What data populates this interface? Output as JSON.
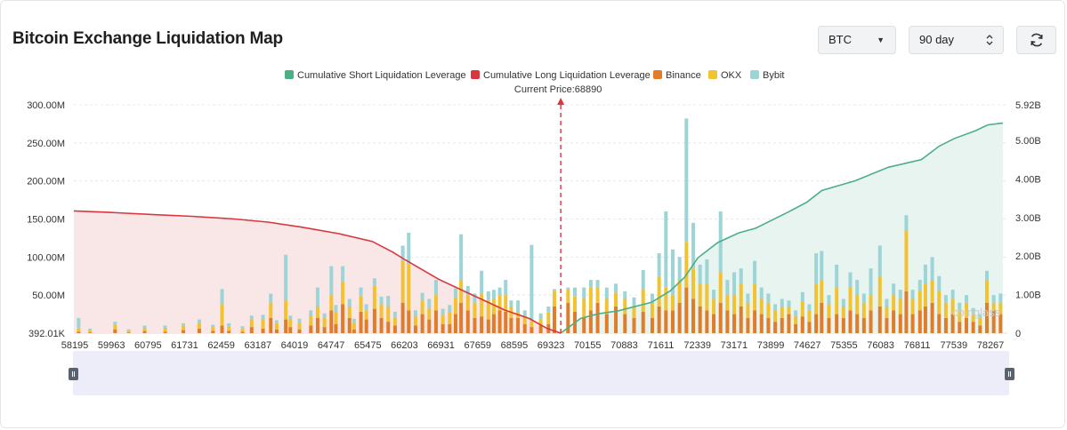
{
  "header": {
    "title": "Bitcoin Exchange Liquidation Map",
    "coin_select": "BTC",
    "period_select": "90 day",
    "refresh_icon": "refresh-icon"
  },
  "colors": {
    "short": "#4caf86",
    "long": "#d9363e",
    "binance": "#e07c2a",
    "okx": "#f2c230",
    "bybit": "#9dd4d6"
  },
  "chart_data": {
    "type": "bar",
    "title": "Bitcoin Exchange Liquidation Map",
    "legend": [
      "Cumulative Short Liquidation Leverage",
      "Cumulative Long Liquidation Leverage",
      "Binance",
      "OKX",
      "Bybit"
    ],
    "current_price_label": "Current Price:68890",
    "current_price": 68890,
    "x_range": [
      58195,
      78700
    ],
    "x_ticks": [
      "58195",
      "59963",
      "60795",
      "61731",
      "62459",
      "63187",
      "64019",
      "64747",
      "65475",
      "66203",
      "66931",
      "67659",
      "68595",
      "69323",
      "70155",
      "70883",
      "71611",
      "72339",
      "73171",
      "73899",
      "74627",
      "75355",
      "76083",
      "76811",
      "77539",
      "78267"
    ],
    "y_left_ticks": [
      "392.01K",
      "50.00M",
      "100.00M",
      "150.00M",
      "200.00M",
      "250.00M",
      "300.00M"
    ],
    "y_left_range": [
      0,
      300
    ],
    "y_left_unit": "M",
    "y_right_ticks": [
      "0",
      "1.00B",
      "2.00B",
      "3.00B",
      "4.00B",
      "5.00B",
      "5.92B"
    ],
    "y_right_range": [
      0,
      5.92
    ],
    "y_right_unit": "B",
    "cumulative_long": {
      "name": "Cumulative Long Liquidation Leverage",
      "x": [
        58195,
        59000,
        60000,
        60795,
        61731,
        62459,
        63187,
        64019,
        64747,
        65200,
        65475,
        66203,
        66931,
        67659,
        68200,
        68595,
        68890
      ],
      "y": [
        3.17,
        3.13,
        3.07,
        3.03,
        2.96,
        2.88,
        2.75,
        2.58,
        2.38,
        2.1,
        1.9,
        1.4,
        1.0,
        0.6,
        0.38,
        0.12,
        0.0
      ]
    },
    "cumulative_short": {
      "name": "Cumulative Short Liquidation Leverage",
      "x": [
        68890,
        69323,
        69700,
        70155,
        70883,
        71300,
        71611,
        71900,
        72339,
        72800,
        73171,
        73899,
        74300,
        74627,
        75355,
        76083,
        76811,
        77200,
        77539,
        78000,
        78267,
        78600
      ],
      "y": [
        0.0,
        0.38,
        0.5,
        0.58,
        0.8,
        1.1,
        1.45,
        1.95,
        2.35,
        2.6,
        2.72,
        3.15,
        3.4,
        3.7,
        3.95,
        4.3,
        4.5,
        4.85,
        5.05,
        5.25,
        5.4,
        5.45
      ]
    },
    "bar_series": [
      "Binance",
      "OKX",
      "Bybit"
    ],
    "bars": [
      {
        "x": 58300,
        "b": 2,
        "o": 4,
        "y": 14
      },
      {
        "x": 58550,
        "b": 1,
        "o": 3,
        "y": 2
      },
      {
        "x": 59100,
        "b": 5,
        "o": 6,
        "y": 4
      },
      {
        "x": 59400,
        "b": 1,
        "o": 2,
        "y": 2
      },
      {
        "x": 59750,
        "b": 3,
        "o": 4,
        "y": 3
      },
      {
        "x": 60200,
        "b": 2,
        "o": 5,
        "y": 3
      },
      {
        "x": 60600,
        "b": 4,
        "o": 6,
        "y": 3
      },
      {
        "x": 60950,
        "b": 6,
        "o": 8,
        "y": 4
      },
      {
        "x": 61250,
        "b": 3,
        "o": 5,
        "y": 3
      },
      {
        "x": 61450,
        "b": 10,
        "o": 28,
        "y": 20
      },
      {
        "x": 61600,
        "b": 3,
        "o": 6,
        "y": 4
      },
      {
        "x": 61900,
        "b": 2,
        "o": 4,
        "y": 3
      },
      {
        "x": 62100,
        "b": 8,
        "o": 10,
        "y": 5
      },
      {
        "x": 62350,
        "b": 6,
        "o": 12,
        "y": 6
      },
      {
        "x": 62520,
        "b": 20,
        "o": 20,
        "y": 12
      },
      {
        "x": 62650,
        "b": 5,
        "o": 8,
        "y": 4
      },
      {
        "x": 62850,
        "b": 18,
        "o": 25,
        "y": 60
      },
      {
        "x": 62950,
        "b": 8,
        "o": 10,
        "y": 5
      },
      {
        "x": 63150,
        "b": 5,
        "o": 8,
        "y": 6
      },
      {
        "x": 63400,
        "b": 10,
        "o": 12,
        "y": 8
      },
      {
        "x": 63550,
        "b": 20,
        "o": 15,
        "y": 25
      },
      {
        "x": 63700,
        "b": 8,
        "o": 12,
        "y": 6
      },
      {
        "x": 63850,
        "b": 30,
        "o": 20,
        "y": 38
      },
      {
        "x": 63950,
        "b": 12,
        "o": 15,
        "y": 10
      },
      {
        "x": 64100,
        "b": 38,
        "o": 30,
        "y": 20
      },
      {
        "x": 64250,
        "b": 20,
        "o": 15,
        "y": 10
      },
      {
        "x": 64350,
        "b": 5,
        "o": 8,
        "y": 6
      },
      {
        "x": 64500,
        "b": 28,
        "o": 20,
        "y": 12
      },
      {
        "x": 64620,
        "b": 18,
        "o": 12,
        "y": 8
      },
      {
        "x": 64800,
        "b": 32,
        "o": 30,
        "y": 10
      },
      {
        "x": 64950,
        "b": 20,
        "o": 18,
        "y": 10
      },
      {
        "x": 65100,
        "b": 15,
        "o": 20,
        "y": 14
      },
      {
        "x": 65250,
        "b": 10,
        "o": 10,
        "y": 8
      },
      {
        "x": 65420,
        "b": 40,
        "o": 55,
        "y": 20
      },
      {
        "x": 65550,
        "b": 30,
        "o": 60,
        "y": 42
      },
      {
        "x": 65700,
        "b": 10,
        "o": 12,
        "y": 8
      },
      {
        "x": 65850,
        "b": 25,
        "o": 18,
        "y": 10
      },
      {
        "x": 66000,
        "b": 18,
        "o": 15,
        "y": 12
      },
      {
        "x": 66150,
        "b": 30,
        "o": 20,
        "y": 20
      },
      {
        "x": 66300,
        "b": 12,
        "o": 12,
        "y": 8
      },
      {
        "x": 66450,
        "b": 12,
        "o": 15,
        "y": 10
      },
      {
        "x": 66580,
        "b": 25,
        "o": 22,
        "y": 12
      },
      {
        "x": 66700,
        "b": 40,
        "o": 30,
        "y": 60
      },
      {
        "x": 66850,
        "b": 30,
        "o": 20,
        "y": 12
      },
      {
        "x": 67000,
        "b": 20,
        "o": 20,
        "y": 12
      },
      {
        "x": 67150,
        "b": 22,
        "o": 30,
        "y": 30
      },
      {
        "x": 67300,
        "b": 18,
        "o": 25,
        "y": 12
      },
      {
        "x": 67420,
        "b": 25,
        "o": 20,
        "y": 12
      },
      {
        "x": 67550,
        "b": 30,
        "o": 20,
        "y": 10
      },
      {
        "x": 67680,
        "b": 28,
        "o": 22,
        "y": 20
      },
      {
        "x": 67800,
        "b": 20,
        "o": 15,
        "y": 8
      },
      {
        "x": 67950,
        "b": 20,
        "o": 8,
        "y": 15
      },
      {
        "x": 68100,
        "b": 12,
        "o": 10,
        "y": 8
      },
      {
        "x": 68250,
        "b": 8,
        "o": 8,
        "y": 100
      },
      {
        "x": 68450,
        "b": 10,
        "o": 8,
        "y": 8
      },
      {
        "x": 68620,
        "b": 12,
        "o": 15,
        "y": 8
      },
      {
        "x": 68750,
        "b": 35,
        "o": 20,
        "y": 3
      },
      {
        "x": 69050,
        "b": 40,
        "o": 18,
        "y": 2
      },
      {
        "x": 69200,
        "b": 28,
        "o": 20,
        "y": 12
      },
      {
        "x": 69400,
        "b": 20,
        "o": 25,
        "y": 15
      },
      {
        "x": 69550,
        "b": 30,
        "o": 30,
        "y": 10
      },
      {
        "x": 69700,
        "b": 40,
        "o": 20,
        "y": 10
      },
      {
        "x": 69900,
        "b": 25,
        "o": 20,
        "y": 15
      },
      {
        "x": 70100,
        "b": 35,
        "o": 18,
        "y": 12
      },
      {
        "x": 70300,
        "b": 25,
        "o": 20,
        "y": 10
      },
      {
        "x": 70500,
        "b": 20,
        "o": 15,
        "y": 12
      },
      {
        "x": 70700,
        "b": 28,
        "o": 30,
        "y": 25
      },
      {
        "x": 70900,
        "b": 20,
        "o": 20,
        "y": 12
      },
      {
        "x": 71050,
        "b": 35,
        "o": 40,
        "y": 30
      },
      {
        "x": 71200,
        "b": 30,
        "o": 30,
        "y": 100
      },
      {
        "x": 71350,
        "b": 30,
        "o": 20,
        "y": 60
      },
      {
        "x": 71500,
        "b": 40,
        "o": 30,
        "y": 30
      },
      {
        "x": 71650,
        "b": 60,
        "o": 60,
        "y": 162
      },
      {
        "x": 71800,
        "b": 45,
        "o": 40,
        "y": 60
      },
      {
        "x": 71950,
        "b": 35,
        "o": 30,
        "y": 25
      },
      {
        "x": 72100,
        "b": 30,
        "o": 35,
        "y": 32
      },
      {
        "x": 72250,
        "b": 25,
        "o": 20,
        "y": 12
      },
      {
        "x": 72400,
        "b": 40,
        "o": 40,
        "y": 80
      },
      {
        "x": 72550,
        "b": 30,
        "o": 20,
        "y": 20
      },
      {
        "x": 72700,
        "b": 25,
        "o": 25,
        "y": 30
      },
      {
        "x": 72850,
        "b": 35,
        "o": 30,
        "y": 20
      },
      {
        "x": 73000,
        "b": 20,
        "o": 20,
        "y": 12
      },
      {
        "x": 73150,
        "b": 30,
        "o": 35,
        "y": 30
      },
      {
        "x": 73300,
        "b": 25,
        "o": 20,
        "y": 15
      },
      {
        "x": 73450,
        "b": 20,
        "o": 20,
        "y": 12
      },
      {
        "x": 73600,
        "b": 15,
        "o": 15,
        "y": 8
      },
      {
        "x": 73750,
        "b": 20,
        "o": 15,
        "y": 10
      },
      {
        "x": 73900,
        "b": 25,
        "o": 10,
        "y": 8
      },
      {
        "x": 74050,
        "b": 12,
        "o": 10,
        "y": 8
      },
      {
        "x": 74200,
        "b": 22,
        "o": 20,
        "y": 12
      },
      {
        "x": 74350,
        "b": 15,
        "o": 15,
        "y": 8
      },
      {
        "x": 74500,
        "b": 25,
        "o": 40,
        "y": 40
      },
      {
        "x": 74620,
        "b": 40,
        "o": 30,
        "y": 38
      },
      {
        "x": 74780,
        "b": 20,
        "o": 18,
        "y": 12
      },
      {
        "x": 74950,
        "b": 25,
        "o": 35,
        "y": 30
      },
      {
        "x": 75100,
        "b": 20,
        "o": 15,
        "y": 10
      },
      {
        "x": 75250,
        "b": 30,
        "o": 30,
        "y": 20
      },
      {
        "x": 75400,
        "b": 25,
        "o": 25,
        "y": 20
      },
      {
        "x": 75550,
        "b": 20,
        "o": 20,
        "y": 12
      },
      {
        "x": 75700,
        "b": 30,
        "o": 20,
        "y": 35
      },
      {
        "x": 75900,
        "b": 35,
        "o": 40,
        "y": 40
      },
      {
        "x": 76050,
        "b": 20,
        "o": 15,
        "y": 10
      },
      {
        "x": 76200,
        "b": 30,
        "o": 20,
        "y": 15
      },
      {
        "x": 76350,
        "b": 25,
        "o": 20,
        "y": 12
      },
      {
        "x": 76480,
        "b": 55,
        "o": 80,
        "y": 20
      },
      {
        "x": 76620,
        "b": 25,
        "o": 20,
        "y": 12
      },
      {
        "x": 76780,
        "b": 30,
        "o": 25,
        "y": 15
      },
      {
        "x": 76900,
        "b": 35,
        "o": 30,
        "y": 25
      },
      {
        "x": 77050,
        "b": 40,
        "o": 30,
        "y": 30
      },
      {
        "x": 77200,
        "b": 25,
        "o": 30,
        "y": 20
      },
      {
        "x": 77350,
        "b": 20,
        "o": 20,
        "y": 10
      },
      {
        "x": 77500,
        "b": 25,
        "o": 20,
        "y": 12
      },
      {
        "x": 77650,
        "b": 15,
        "o": 15,
        "y": 10
      },
      {
        "x": 77800,
        "b": 20,
        "o": 20,
        "y": 10
      },
      {
        "x": 77950,
        "b": 15,
        "o": 10,
        "y": 8
      },
      {
        "x": 78100,
        "b": 10,
        "o": 10,
        "y": 5
      },
      {
        "x": 78250,
        "b": 40,
        "o": 30,
        "y": 12
      },
      {
        "x": 78400,
        "b": 30,
        "o": 10,
        "y": 10
      },
      {
        "x": 78550,
        "b": 25,
        "o": 15,
        "y": 12
      }
    ]
  }
}
